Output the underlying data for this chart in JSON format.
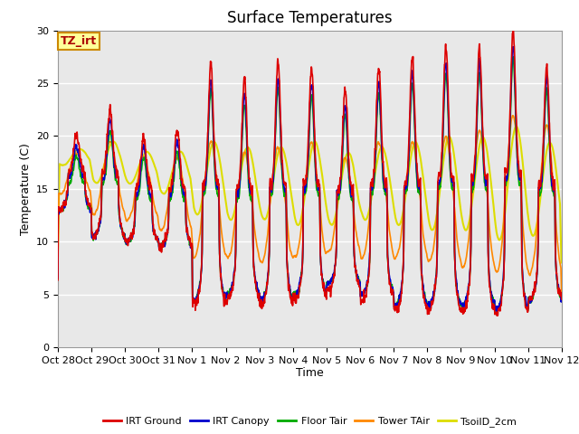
{
  "title": "Surface Temperatures",
  "ylabel": "Temperature (C)",
  "xlabel": "Time",
  "annotation": "TZ_irt",
  "annotation_color": "#aa0000",
  "annotation_bg": "#ffff99",
  "annotation_border": "#cc8800",
  "ylim": [
    0,
    30
  ],
  "yticks": [
    0,
    5,
    10,
    15,
    20,
    25,
    30
  ],
  "bg_color": "#e8e8e8",
  "grid_color": "#ffffff",
  "series": {
    "IRT Ground": {
      "color": "#dd0000",
      "lw": 1.2
    },
    "IRT Canopy": {
      "color": "#0000cc",
      "lw": 1.2
    },
    "Floor Tair": {
      "color": "#00aa00",
      "lw": 1.2
    },
    "Tower TAir": {
      "color": "#ff8800",
      "lw": 1.2
    },
    "TsoilD_2cm": {
      "color": "#dddd00",
      "lw": 1.5
    }
  },
  "tick_labels": [
    "Oct 28",
    "Oct 29",
    "Oct 30",
    "Oct 31",
    "Nov 1",
    "Nov 2",
    "Nov 3",
    "Nov 4",
    "Nov 5",
    "Nov 6",
    "Nov 7",
    "Nov 8",
    "Nov 9",
    "Nov 10",
    "Nov 11",
    "Nov 12"
  ],
  "title_fontsize": 12,
  "label_fontsize": 9,
  "tick_fontsize": 8,
  "legend_fontsize": 8
}
